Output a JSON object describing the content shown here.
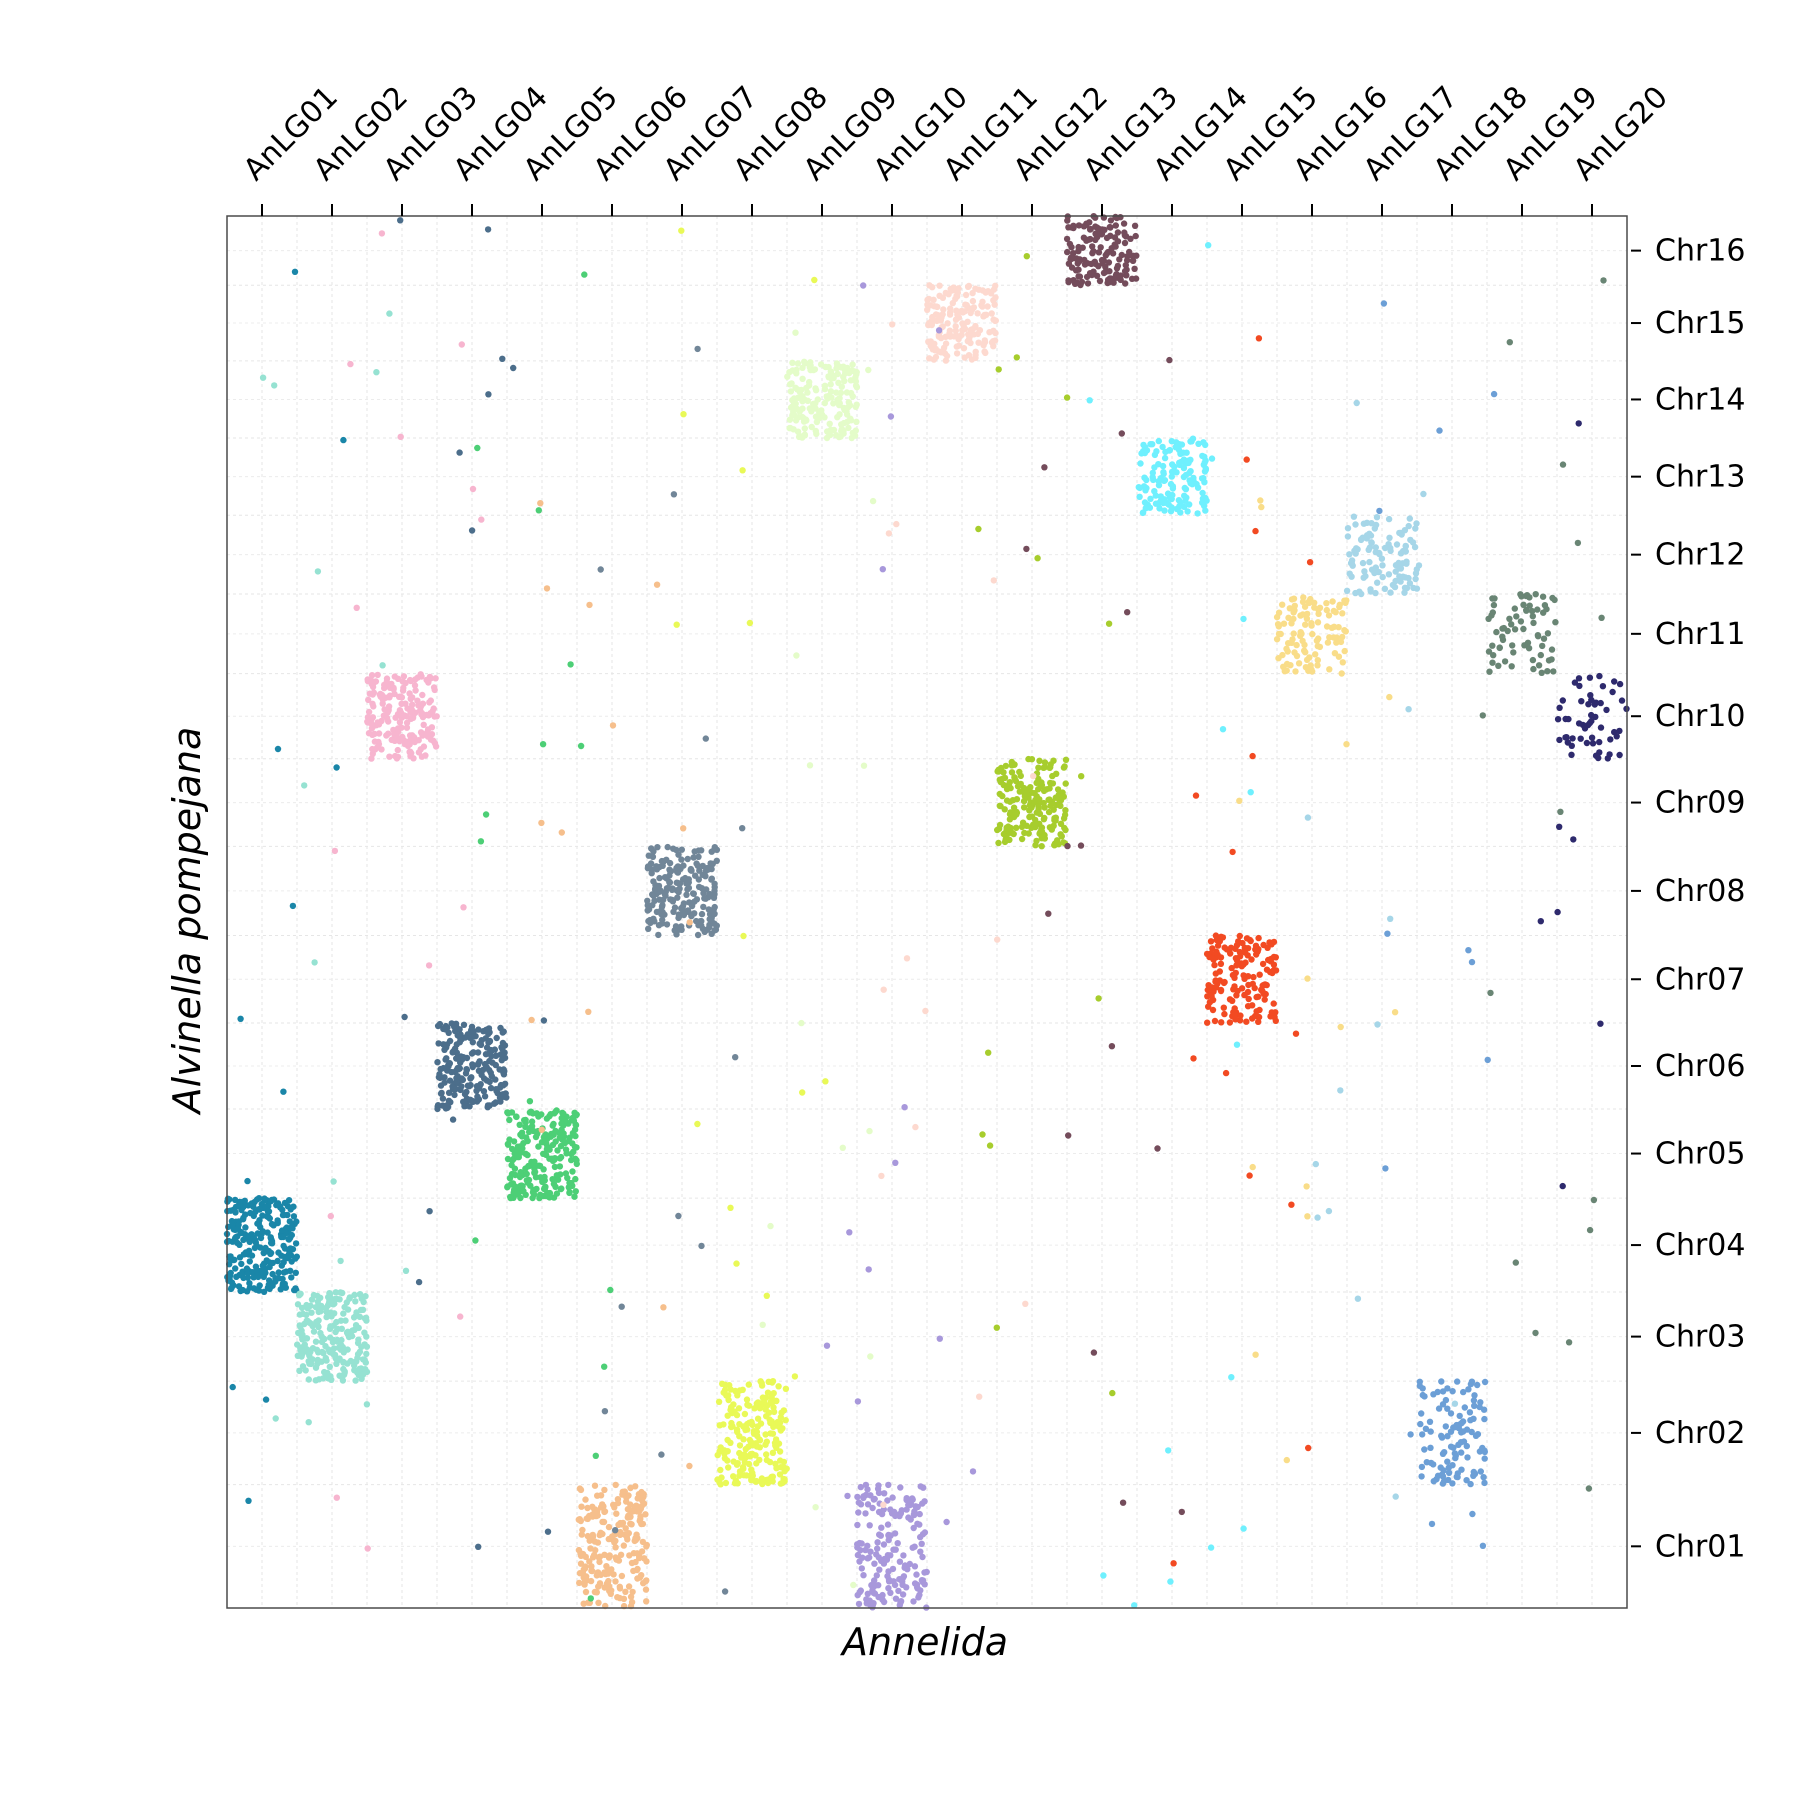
{
  "chart_data": {
    "type": "scatter",
    "xlabel": "Annelida",
    "ylabel": "Alvinella pompejana",
    "x_categories": [
      "AnLG01",
      "AnLG02",
      "AnLG03",
      "AnLG04",
      "AnLG05",
      "AnLG06",
      "AnLG07",
      "AnLG08",
      "AnLG09",
      "AnLG10",
      "AnLG11",
      "AnLG12",
      "AnLG13",
      "AnLG14",
      "AnLG15",
      "AnLG16",
      "AnLG17",
      "AnLG18",
      "AnLG19",
      "AnLG20"
    ],
    "y_categories": [
      "Chr01",
      "Chr02",
      "Chr03",
      "Chr04",
      "Chr05",
      "Chr06",
      "Chr07",
      "Chr08",
      "Chr09",
      "Chr10",
      "Chr11",
      "Chr12",
      "Chr13",
      "Chr14",
      "Chr15",
      "Chr16"
    ],
    "y_rel_sizes": [
      1.55,
      1.3,
      1.12,
      1.18,
      1.12,
      1.08,
      1.1,
      1.12,
      1.1,
      1.07,
      1.0,
      0.99,
      0.97,
      0.97,
      0.95,
      0.87
    ],
    "x_axis_position": "top",
    "y_axis_position": "right",
    "grid": true,
    "series_colors": [
      "#1a86a8",
      "#96e2d2",
      "#f7b5cf",
      "#4c6e8b",
      "#4dcf76",
      "#f6bf8c",
      "#718698",
      "#e9f957",
      "#e4fcc9",
      "#a898db",
      "#fdd9cf",
      "#a7cd2d",
      "#744c5b",
      "#6ff0fe",
      "#f24a22",
      "#f9dd89",
      "#a6d6e8",
      "#6c9fd6",
      "#698574",
      "#2e2a6d"
    ],
    "blocks": [
      {
        "x": "AnLG01",
        "y": "Chr04",
        "points": 260
      },
      {
        "x": "AnLG02",
        "y": "Chr03",
        "points": 220
      },
      {
        "x": "AnLG03",
        "y": "Chr10",
        "points": 200
      },
      {
        "x": "AnLG04",
        "y": "Chr06",
        "points": 220
      },
      {
        "x": "AnLG05",
        "y": "Chr05",
        "points": 230
      },
      {
        "x": "AnLG06",
        "y": "Chr01",
        "points": 220
      },
      {
        "x": "AnLG07",
        "y": "Chr08",
        "points": 210
      },
      {
        "x": "AnLG08",
        "y": "Chr02",
        "points": 200
      },
      {
        "x": "AnLG09",
        "y": "Chr14",
        "points": 180
      },
      {
        "x": "AnLG10",
        "y": "Chr01",
        "points": 180
      },
      {
        "x": "AnLG11",
        "y": "Chr15",
        "points": 170
      },
      {
        "x": "AnLG12",
        "y": "Chr09",
        "points": 200
      },
      {
        "x": "AnLG13",
        "y": "Chr16",
        "points": 150
      },
      {
        "x": "AnLG14",
        "y": "Chr13",
        "points": 140
      },
      {
        "x": "AnLG15",
        "y": "Chr07",
        "points": 160
      },
      {
        "x": "AnLG16",
        "y": "Chr11",
        "points": 110
      },
      {
        "x": "AnLG17",
        "y": "Chr12",
        "points": 110
      },
      {
        "x": "AnLG18",
        "y": "Chr02",
        "points": 110
      },
      {
        "x": "AnLG19",
        "y": "Chr11",
        "points": 70
      },
      {
        "x": "AnLG20",
        "y": "Chr10",
        "points": 55
      }
    ],
    "scattered_points_per_series": 14
  }
}
